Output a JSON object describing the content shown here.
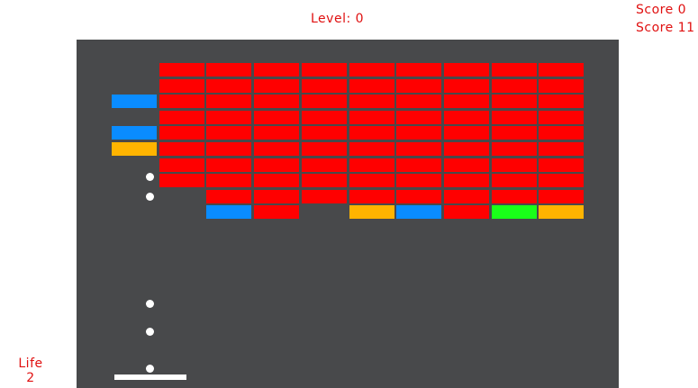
{
  "hud": {
    "level_text": "Level: 0",
    "score_primary": "Score 0",
    "score_secondary": "Score 11",
    "life_label": "Life",
    "life_value": "2"
  },
  "colors": {
    "red": "#ff0000",
    "blue": "#0a8cff",
    "yellow": "#ffb400",
    "green": "#19ff19",
    "board": "#48494b",
    "hud_text": "#e01010"
  },
  "bricks": {
    "rows": [
      "-rrrrrrrrr",
      "-rrrrrrrrr",
      "brrrrrrrrr",
      "-rrrrrrrrr",
      "brrrrrrrrr",
      "yrrrrrrrrr",
      "-rrrrrrrrr",
      "-rrrrrrrrr",
      "--rrrrrrrr",
      "--br-ybrgy"
    ]
  },
  "balls": {
    "count": 5
  },
  "paddle": {
    "present": true
  }
}
